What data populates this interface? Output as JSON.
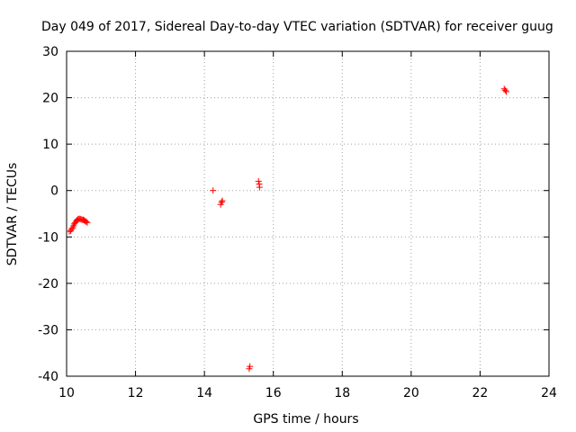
{
  "chart_data": {
    "type": "scatter",
    "title": "Day 049 of 2017, Sidereal Day-to-day VTEC variation (SDTVAR) for receiver guug",
    "xlabel": "GPS time / hours",
    "ylabel": "SDTVAR / TECUs",
    "xlim": [
      10,
      24
    ],
    "ylim": [
      -40,
      30
    ],
    "xticks": [
      10,
      12,
      14,
      16,
      18,
      20,
      22,
      24
    ],
    "yticks": [
      -40,
      -30,
      -20,
      -10,
      0,
      10,
      20,
      30
    ],
    "grid": true,
    "marker": "+",
    "color": "#ff0000",
    "series": [
      {
        "name": "SDTVAR",
        "x": [
          10.08,
          10.12,
          10.15,
          10.18,
          10.2,
          10.22,
          10.25,
          10.28,
          10.3,
          10.33,
          10.36,
          10.39,
          10.42,
          10.45,
          10.48,
          10.51,
          10.54,
          10.57,
          10.6,
          14.25,
          14.47,
          14.5,
          14.52,
          15.3,
          15.32,
          15.57,
          15.59,
          15.6,
          22.7,
          22.73,
          22.76
        ],
        "y": [
          -8.8,
          -8.7,
          -8.3,
          -8.0,
          -7.6,
          -7.2,
          -6.9,
          -6.6,
          -6.4,
          -6.2,
          -6.1,
          -6.1,
          -6.2,
          -6.3,
          -6.3,
          -6.4,
          -6.6,
          -6.7,
          -6.9,
          0.0,
          -3.0,
          -2.5,
          -2.2,
          -38.4,
          -37.9,
          2.0,
          1.4,
          0.7,
          21.9,
          21.6,
          21.3
        ]
      }
    ]
  }
}
